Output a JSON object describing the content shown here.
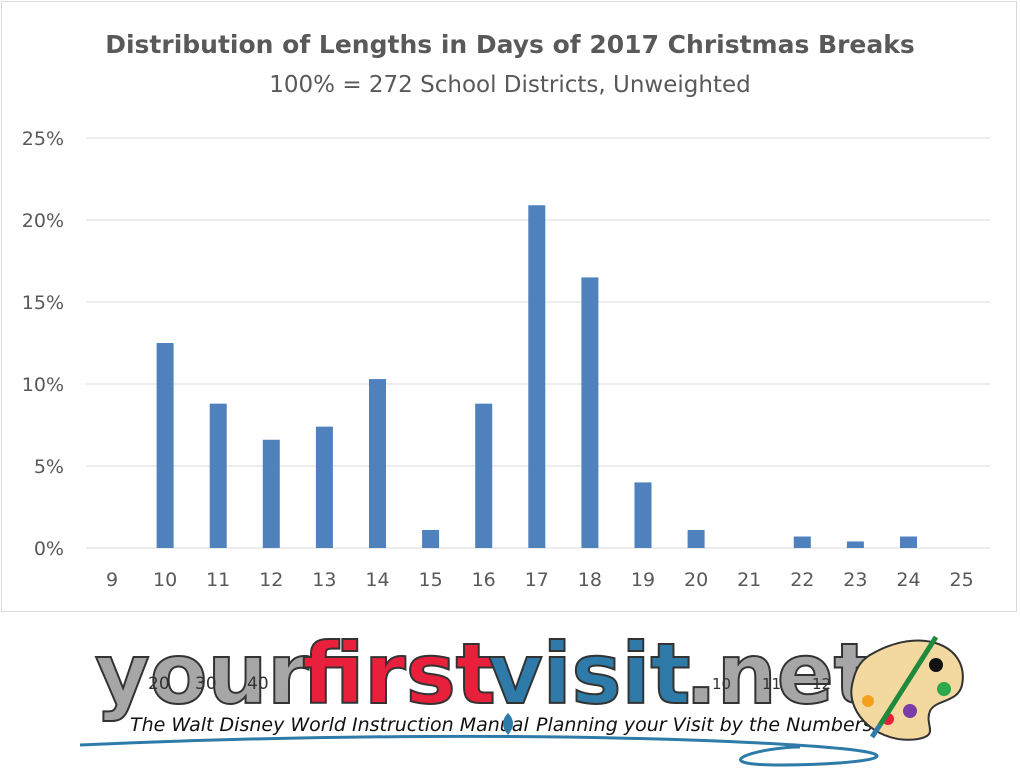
{
  "chart_data": {
    "type": "bar",
    "title": "Distribution of Lengths in Days of 2017 Christmas Breaks",
    "subtitle": "100% = 272 School Districts, Unweighted",
    "categories": [
      "9",
      "10",
      "11",
      "12",
      "13",
      "14",
      "15",
      "16",
      "17",
      "18",
      "19",
      "20",
      "21",
      "22",
      "23",
      "24",
      "25"
    ],
    "values": [
      0,
      12.5,
      8.8,
      6.6,
      7.4,
      10.3,
      1.1,
      8.8,
      20.9,
      16.5,
      4.0,
      1.1,
      0,
      0.7,
      0.4,
      0.7,
      0
    ],
    "unit": "%",
    "ylim": [
      0,
      25
    ],
    "yticks": [
      0,
      5,
      10,
      15,
      20,
      25
    ],
    "ytick_labels": [
      "0%",
      "5%",
      "10%",
      "15%",
      "20%",
      "25%"
    ],
    "grid": true,
    "legend": "none",
    "bar_color": "#4f81bd"
  },
  "logo": {
    "part1": "your",
    "part2": "first",
    "part3": "visit",
    "part4": ".net",
    "numbers": [
      "20",
      "30",
      "40",
      "10",
      "11",
      "12"
    ],
    "tagline_left": "The Walt Disney World Instruction Manual",
    "tagline_right": "Planning your Visit by the Numbers",
    "colors": {
      "gray": "#a6a6a6",
      "red": "#e8203c",
      "blue": "#2e7aa8"
    },
    "palette_icon": "artist-palette-icon"
  }
}
